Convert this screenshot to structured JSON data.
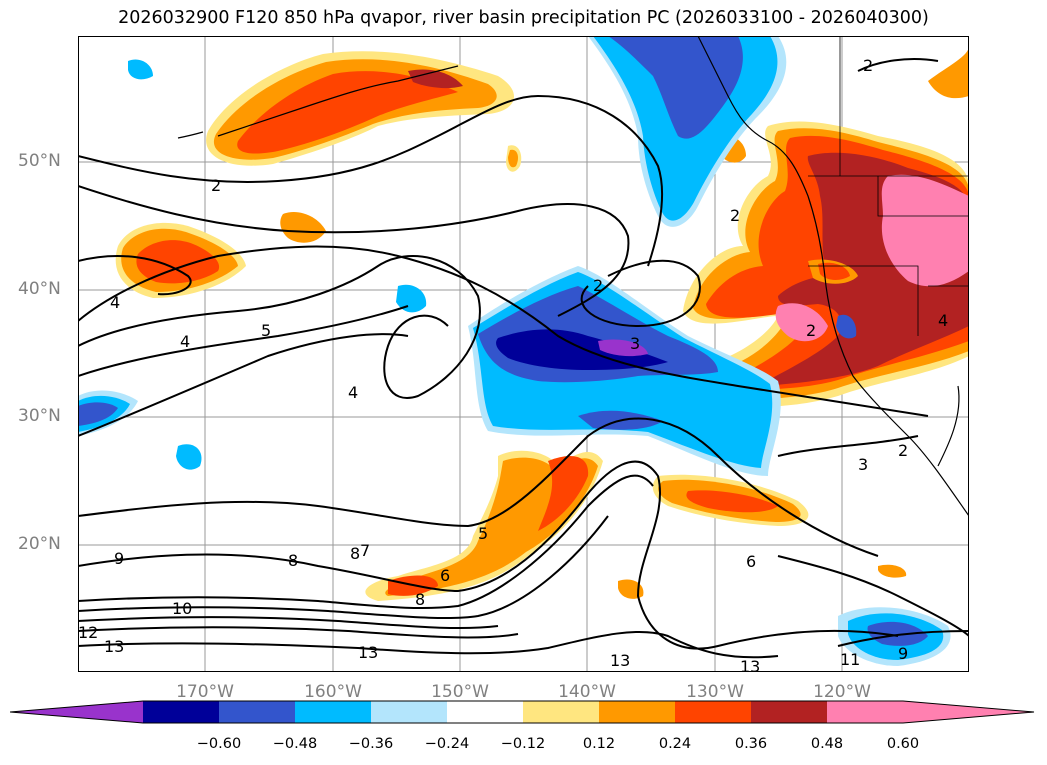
{
  "title": "2026032900 F120 850 hPa qvapor, river basin precipitation PC (2026033100 - 2026040300)",
  "map": {
    "lat_labels": [
      "50°N",
      "40°N",
      "30°N",
      "20°N"
    ],
    "lon_labels": [
      "170°W",
      "160°W",
      "150°W",
      "140°W",
      "130°W",
      "120°W"
    ],
    "contour_labels": [
      "2",
      "2",
      "2",
      "2",
      "2",
      "2",
      "3",
      "3",
      "4",
      "4",
      "4",
      "5",
      "5",
      "6",
      "6",
      "7",
      "8",
      "8",
      "8",
      "9",
      "9",
      "10",
      "11",
      "12",
      "13",
      "13",
      "13",
      "13",
      "4"
    ]
  },
  "colorbar": {
    "ticks": [
      "−0.60",
      "−0.48",
      "−0.36",
      "−0.24",
      "−0.12",
      "0.12",
      "0.24",
      "0.36",
      "0.48",
      "0.60"
    ],
    "colors": [
      "#9933cc",
      "#000099",
      "#3355cc",
      "#00bbff",
      "#b3e5fc",
      "#ffffff",
      "#ffe680",
      "#ff9900",
      "#ff4400",
      "#b22222",
      "#ff80b0",
      "#ff80b0"
    ]
  }
}
